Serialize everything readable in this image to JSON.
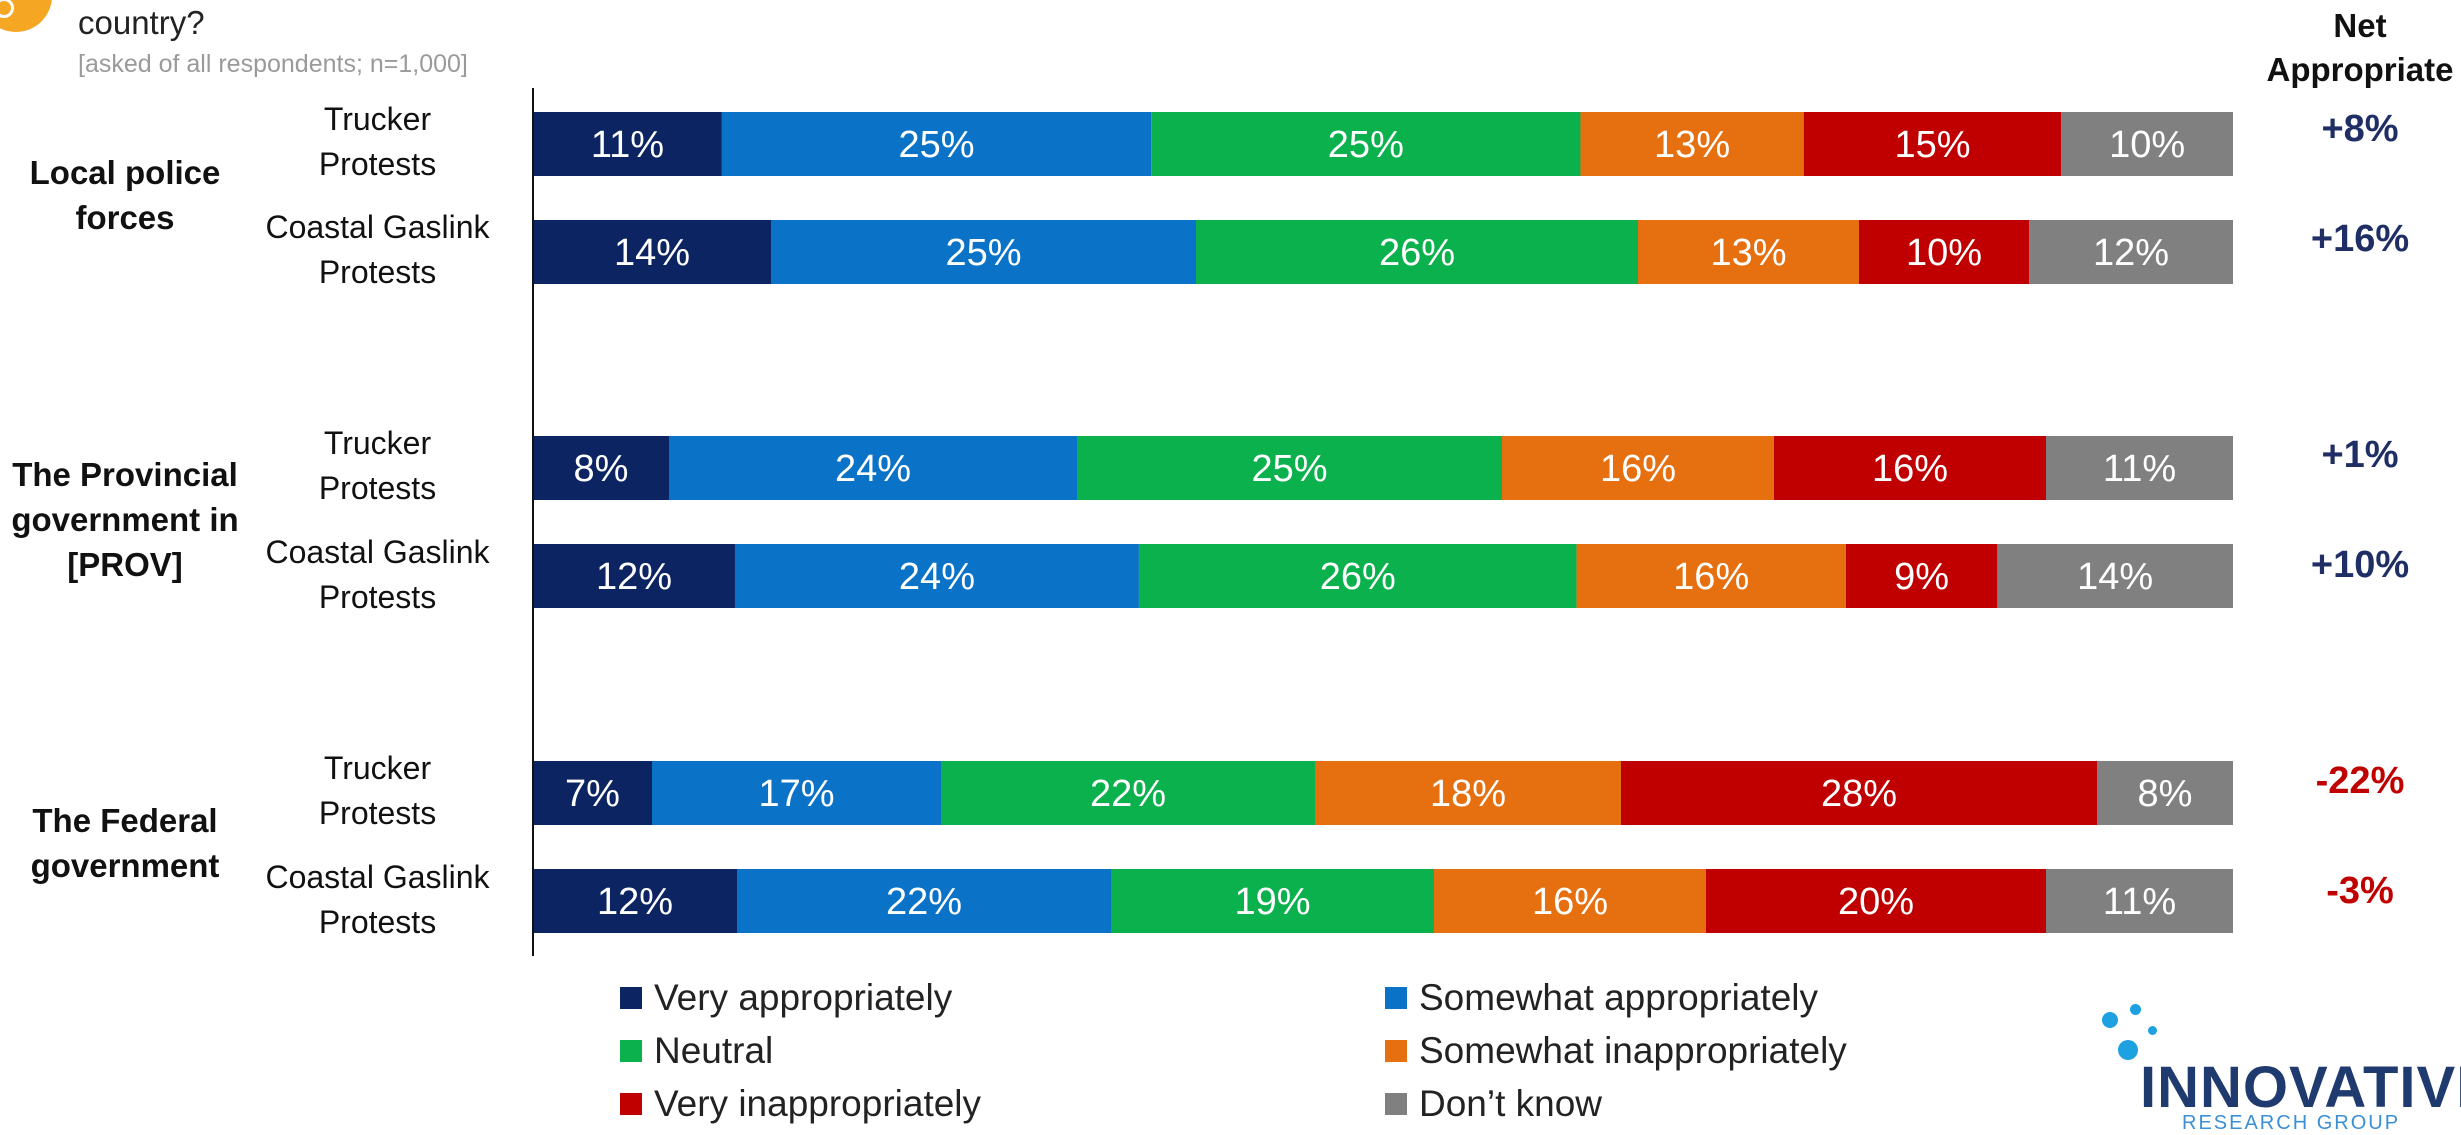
{
  "header": {
    "question_tail": "country?",
    "note": "[asked of all respondents; n=1,000]",
    "net_title_line1": "Net",
    "net_title_line2": "Appropriate"
  },
  "groups": [
    {
      "label_lines": [
        "Local police",
        "forces"
      ]
    },
    {
      "label_lines": [
        "The Provincial",
        "government in",
        "[PROV]"
      ]
    },
    {
      "label_lines": [
        "The Federal",
        "government"
      ]
    }
  ],
  "row_labels": [
    [
      "Trucker",
      "Protests"
    ],
    [
      "Coastal Gaslink",
      "Protests"
    ],
    [
      "Trucker",
      "Protests"
    ],
    [
      "Coastal Gaslink",
      "Protests"
    ],
    [
      "Trucker",
      "Protests"
    ],
    [
      "Coastal Gaslink",
      "Protests"
    ]
  ],
  "net": [
    {
      "value": "+8%",
      "color": "#1f2f66"
    },
    {
      "value": "+16%",
      "color": "#1f2f66"
    },
    {
      "value": "+1%",
      "color": "#1f2f66"
    },
    {
      "value": "+10%",
      "color": "#1f2f66"
    },
    {
      "value": "-22%",
      "color": "#c00000"
    },
    {
      "value": "-3%",
      "color": "#c00000"
    }
  ],
  "legend": [
    {
      "label": "Very appropriately",
      "color": "#0c2461"
    },
    {
      "label": "Somewhat appropriately",
      "color": "#0a72c7"
    },
    {
      "label": "Neutral",
      "color": "#0bb14c"
    },
    {
      "label": "Somewhat inappropriately",
      "color": "#e6700f"
    },
    {
      "label": "Very inappropriately",
      "color": "#c00000"
    },
    {
      "label": "Don’t know",
      "color": "#808080"
    }
  ],
  "logo": {
    "name": "INNOVATIVE",
    "sub": "RESEARCH GROUP"
  },
  "chart_data": {
    "type": "bar",
    "orientation": "horizontal-stacked-100",
    "categories": [
      "Local police forces - Trucker Protests",
      "Local police forces - Coastal Gaslink Protests",
      "The Provincial government in [PROV] - Trucker Protests",
      "The Provincial government in [PROV] - Coastal Gaslink Protests",
      "The Federal government - Trucker Protests",
      "The Federal government - Coastal Gaslink Protests"
    ],
    "series": [
      {
        "name": "Very appropriately",
        "color": "#0c2461",
        "values": [
          11,
          14,
          8,
          12,
          7,
          12
        ]
      },
      {
        "name": "Somewhat appropriately",
        "color": "#0a72c7",
        "values": [
          25,
          25,
          24,
          24,
          17,
          22
        ]
      },
      {
        "name": "Neutral",
        "color": "#0bb14c",
        "values": [
          25,
          26,
          25,
          26,
          22,
          19
        ]
      },
      {
        "name": "Somewhat inappropriately",
        "color": "#e6700f",
        "values": [
          13,
          13,
          16,
          16,
          18,
          16
        ]
      },
      {
        "name": "Very inappropriately",
        "color": "#c00000",
        "values": [
          15,
          10,
          16,
          9,
          28,
          20
        ]
      },
      {
        "name": "Don’t know",
        "color": "#808080",
        "values": [
          10,
          12,
          11,
          14,
          8,
          11
        ]
      }
    ],
    "value_suffix": "%",
    "legend_position": "bottom",
    "grid": false
  }
}
